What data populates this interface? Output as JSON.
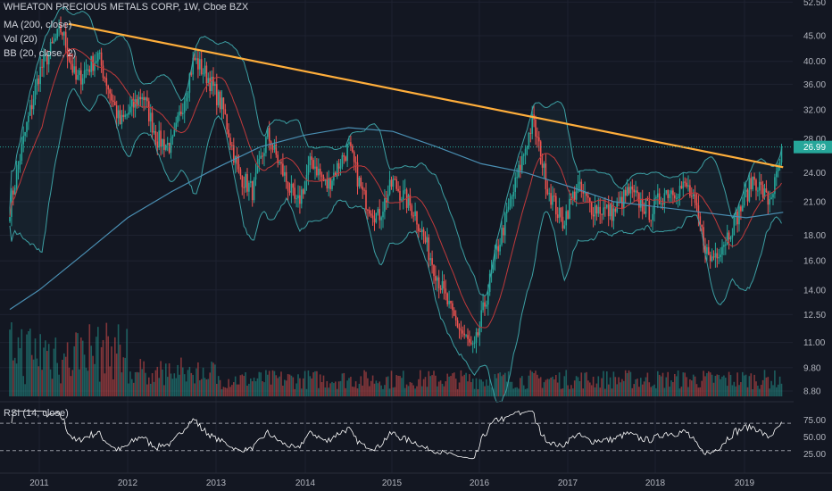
{
  "header": {
    "title": "WHEATON PRECIOUS METALS CORP, 1W, Cboe BZX",
    "ma_label": "MA (200, close)",
    "vol_label": "Vol (20)",
    "bb_label": "BB (20, close, 2)",
    "rsi_label": "RSI (14, close)"
  },
  "colors": {
    "background": "#131722",
    "up": "#26a69a",
    "down": "#ef5350",
    "ma200": "#4a8fb3",
    "bb_band": "#3c9fa3",
    "bb_basis": "#c0393b",
    "trendline": "#ffae3b",
    "rsi": "#ffffff",
    "grid": "#1e2230",
    "price_label_bg": "#26a69a"
  },
  "last_price": {
    "value": 26.99,
    "label": "26.99"
  },
  "chart_data": {
    "type": "candlestick",
    "price_axis_ticks": [
      "52.50",
      "45.00",
      "40.00",
      "36.00",
      "32.00",
      "28.00",
      "24.00",
      "21.00",
      "18.00",
      "16.00",
      "14.00",
      "12.50",
      "11.00",
      "9.80",
      "8.80"
    ],
    "rsi_axis_ticks": [
      "75.00",
      "50.00",
      "25.00"
    ],
    "x_ticks": [
      "2011",
      "2012",
      "2013",
      "2014",
      "2015",
      "2016",
      "2017",
      "2018",
      "2019"
    ],
    "rsi_levels": [
      70,
      30
    ],
    "price_keypoints": [
      [
        "2010-09",
        20.5
      ],
      [
        "2010-11",
        28.5
      ],
      [
        "2011-01",
        38.0
      ],
      [
        "2011-04",
        46.5
      ],
      [
        "2011-06",
        36.5
      ],
      [
        "2011-09",
        41.0
      ],
      [
        "2011-12",
        30.0
      ],
      [
        "2012-03",
        34.5
      ],
      [
        "2012-05",
        28.0
      ],
      [
        "2012-07",
        27.0
      ],
      [
        "2012-10",
        40.5
      ],
      [
        "2012-12",
        37.0
      ],
      [
        "2013-02",
        32.0
      ],
      [
        "2013-04",
        24.0
      ],
      [
        "2013-06",
        22.0
      ],
      [
        "2013-08",
        28.5
      ],
      [
        "2013-12",
        20.5
      ],
      [
        "2014-02",
        25.5
      ],
      [
        "2014-04",
        22.5
      ],
      [
        "2014-07",
        27.0
      ],
      [
        "2014-09",
        21.5
      ],
      [
        "2014-11",
        19.5
      ],
      [
        "2015-01",
        23.0
      ],
      [
        "2015-04",
        20.0
      ],
      [
        "2015-07",
        15.0
      ],
      [
        "2015-09",
        12.5
      ],
      [
        "2015-12",
        10.5
      ],
      [
        "2016-03",
        16.5
      ],
      [
        "2016-05",
        21.0
      ],
      [
        "2016-08",
        30.5
      ],
      [
        "2016-10",
        22.5
      ],
      [
        "2016-12",
        19.0
      ],
      [
        "2017-02",
        22.5
      ],
      [
        "2017-04",
        20.5
      ],
      [
        "2017-07",
        20.0
      ],
      [
        "2017-09",
        22.0
      ],
      [
        "2017-12",
        20.0
      ],
      [
        "2018-02",
        22.0
      ],
      [
        "2018-05",
        22.5
      ],
      [
        "2018-06",
        20.5
      ],
      [
        "2018-08",
        16.0
      ],
      [
        "2018-10",
        17.5
      ],
      [
        "2018-12",
        20.0
      ],
      [
        "2019-02",
        23.5
      ],
      [
        "2019-04",
        21.0
      ],
      [
        "2019-05",
        23.0
      ],
      [
        "2019-06",
        26.99
      ]
    ],
    "ma200_keypoints": [
      [
        "2010-09",
        12.8
      ],
      [
        "2011-01",
        14.0
      ],
      [
        "2011-07",
        16.5
      ],
      [
        "2012-01",
        19.5
      ],
      [
        "2012-07",
        22.0
      ],
      [
        "2013-01",
        24.5
      ],
      [
        "2013-07",
        27.0
      ],
      [
        "2014-01",
        28.5
      ],
      [
        "2014-07",
        29.5
      ],
      [
        "2015-01",
        29.0
      ],
      [
        "2015-07",
        27.0
      ],
      [
        "2016-01",
        25.0
      ],
      [
        "2016-07",
        24.0
      ],
      [
        "2017-01",
        22.5
      ],
      [
        "2017-07",
        21.0
      ],
      [
        "2018-01",
        20.5
      ],
      [
        "2018-07",
        20.0
      ],
      [
        "2019-01",
        19.5
      ],
      [
        "2019-06",
        20.0
      ]
    ],
    "trendline": {
      "start": [
        "2011-05",
        47.5
      ],
      "end": [
        "2019-06",
        24.6
      ]
    }
  }
}
